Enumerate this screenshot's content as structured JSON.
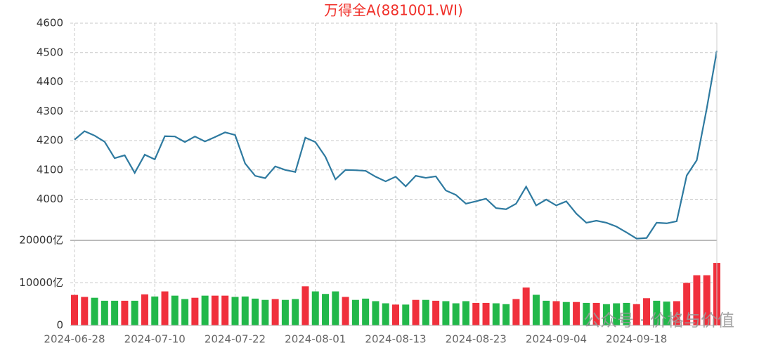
{
  "chart_data": [
    {
      "type": "line",
      "title": "万得全A(881001.WI)",
      "color": "#2e7aa0",
      "categories": [
        "2024-06-28",
        null,
        null,
        null,
        null,
        null,
        null,
        null,
        "2024-07-10",
        null,
        null,
        null,
        null,
        null,
        null,
        null,
        "2024-07-22",
        null,
        null,
        null,
        null,
        null,
        null,
        null,
        "2024-08-01",
        null,
        null,
        null,
        null,
        null,
        null,
        null,
        "2024-08-13",
        null,
        null,
        null,
        null,
        null,
        null,
        null,
        "2024-08-23",
        null,
        null,
        null,
        null,
        null,
        null,
        null,
        "2024-09-04",
        null,
        null,
        null,
        null,
        null,
        null,
        null,
        "2024-09-18",
        null,
        null,
        null,
        null,
        null,
        null,
        null,
        null
      ],
      "values": [
        4203,
        4232,
        4217,
        4196,
        4140,
        4150,
        4090,
        4152,
        4136,
        4215,
        4214,
        4195,
        4214,
        4197,
        4212,
        4228,
        4219,
        4122,
        4080,
        4072,
        4112,
        4100,
        4093,
        4210,
        4195,
        4145,
        4068,
        4100,
        4099,
        4097,
        4077,
        4061,
        4077,
        4044,
        4080,
        4073,
        4078,
        4030,
        4015,
        3985,
        3993,
        4002,
        3970,
        3966,
        3985,
        4043,
        3979,
        3999,
        3979,
        3993,
        3951,
        3920,
        3927,
        3920,
        3907,
        3887,
        3866,
        3868,
        3920,
        3918,
        3925,
        4081,
        4133,
        4310,
        4506
      ],
      "ylim": [
        3860,
        4600
      ],
      "yticks": [
        4000,
        4100,
        4200,
        4300,
        4400,
        4500,
        4600
      ],
      "grid": true
    },
    {
      "type": "bar",
      "values": [
        7170,
        6700,
        6500,
        5800,
        5800,
        5800,
        5800,
        7300,
        6800,
        8000,
        7000,
        6200,
        6500,
        7000,
        7000,
        7000,
        6700,
        6800,
        6300,
        6000,
        6200,
        6000,
        6200,
        9200,
        8000,
        7400,
        8000,
        6700,
        6000,
        6300,
        5700,
        5200,
        4900,
        4900,
        6000,
        6000,
        5800,
        5700,
        5200,
        5700,
        5300,
        5300,
        5200,
        5000,
        6200,
        8900,
        7200,
        5800,
        5700,
        5500,
        5500,
        5300,
        5300,
        5000,
        5200,
        5300,
        5000,
        6400,
        5800,
        5600,
        5700,
        10000,
        11800,
        11800,
        14700
      ],
      "colors": [
        "#f0303c",
        "#f0303c",
        "#22b84a",
        "#22b84a",
        "#22b84a",
        "#f0303c",
        "#22b84a",
        "#f0303c",
        "#22b84a",
        "#f0303c",
        "#22b84a",
        "#22b84a",
        "#f0303c",
        "#22b84a",
        "#f0303c",
        "#f0303c",
        "#22b84a",
        "#22b84a",
        "#22b84a",
        "#22b84a",
        "#f0303c",
        "#22b84a",
        "#22b84a",
        "#f0303c",
        "#22b84a",
        "#22b84a",
        "#22b84a",
        "#f0303c",
        "#22b84a",
        "#22b84a",
        "#22b84a",
        "#22b84a",
        "#f0303c",
        "#22b84a",
        "#f0303c",
        "#22b84a",
        "#f0303c",
        "#22b84a",
        "#22b84a",
        "#22b84a",
        "#f0303c",
        "#f0303c",
        "#22b84a",
        "#22b84a",
        "#f0303c",
        "#f0303c",
        "#22b84a",
        "#22b84a",
        "#f0303c",
        "#22b84a",
        "#f0303c",
        "#22b84a",
        "#f0303c",
        "#22b84a",
        "#22b84a",
        "#22b84a",
        "#f0303c",
        "#f0303c",
        "#22b84a",
        "#22b84a",
        "#f0303c",
        "#f0303c",
        "#f0303c",
        "#f0303c",
        "#f0303c"
      ],
      "ylim": [
        0,
        20000
      ],
      "yticks": [
        0,
        {
          "value": 10000,
          "label": "10000亿"
        },
        {
          "value": 20000,
          "label": "20000亿"
        }
      ],
      "grid": true
    }
  ],
  "watermark": "公众号 · 价格与价值"
}
